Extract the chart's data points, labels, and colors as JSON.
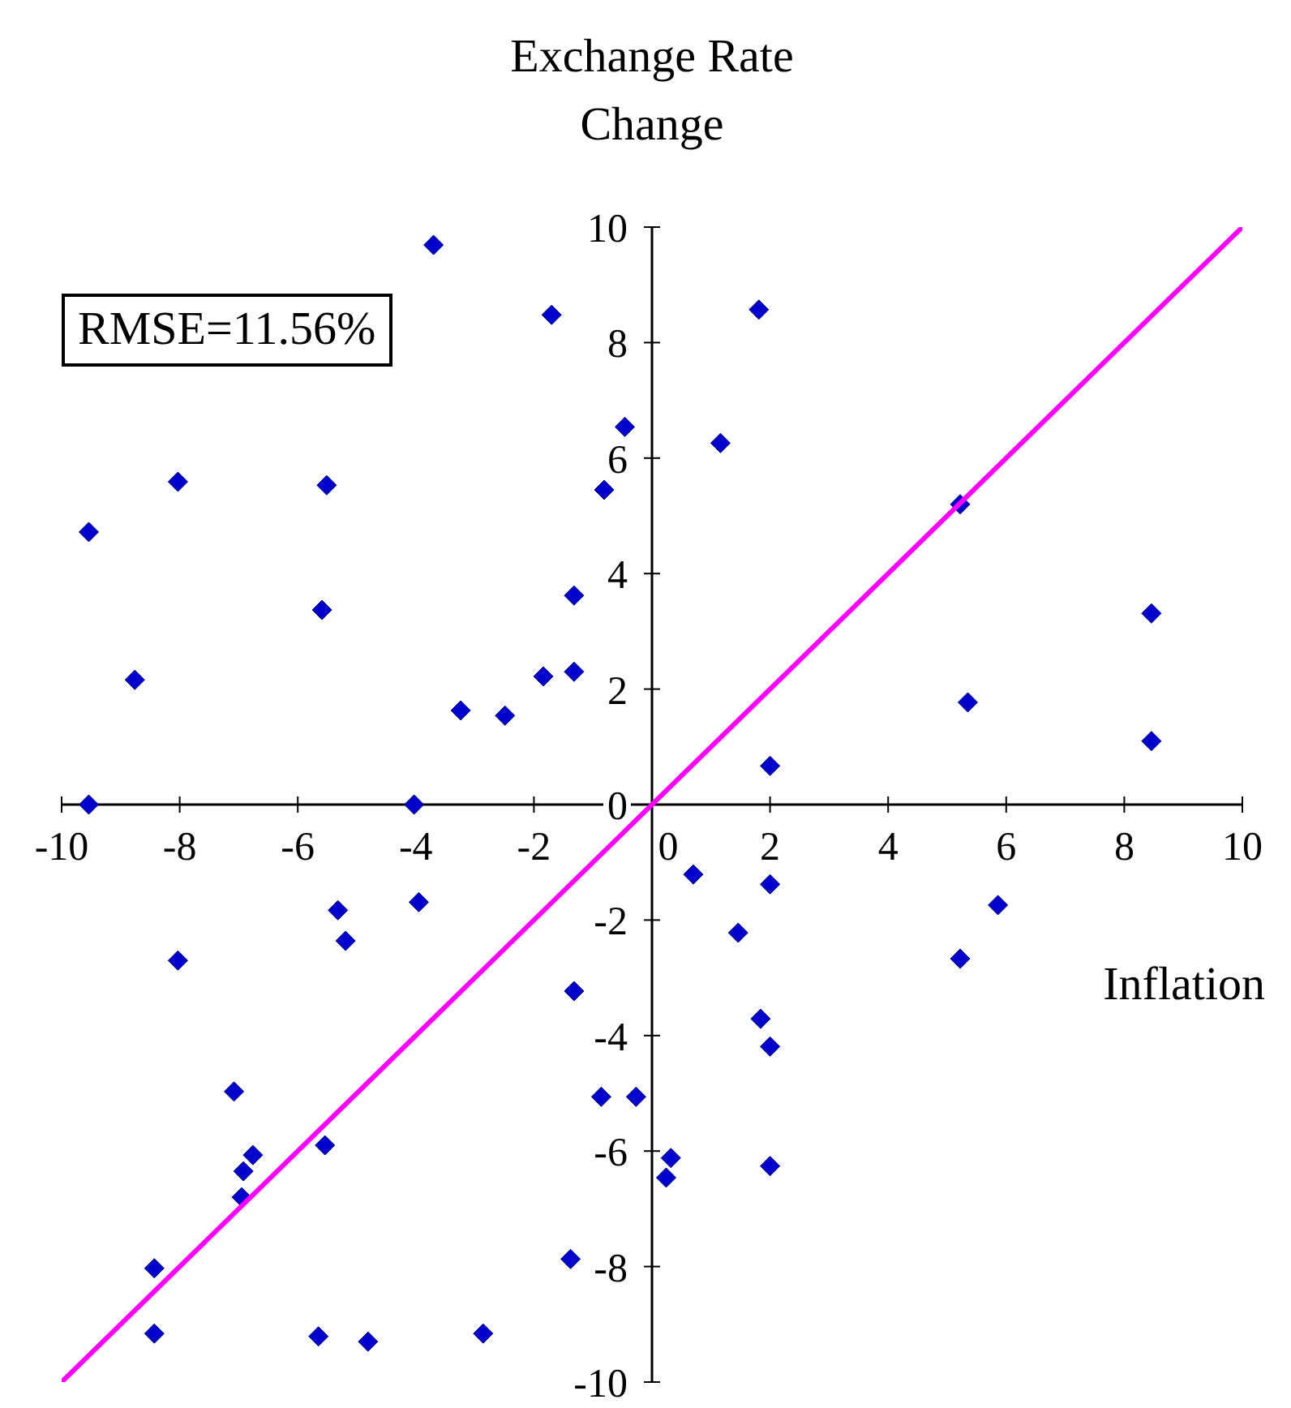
{
  "chart_data": {
    "type": "scatter",
    "ylabel": "Exchange Rate Change",
    "xlabel": "Inflation",
    "annotations": [
      "RMSE=11.56%"
    ],
    "xlim": [
      -10,
      10
    ],
    "xticks": [
      -10,
      -8,
      -6,
      -4,
      -2,
      0,
      2,
      4,
      6,
      8,
      10
    ],
    "ylim": [
      -10,
      10
    ],
    "yticks": [
      -10,
      -8,
      -6,
      -4,
      -2,
      0,
      2,
      4,
      6,
      8,
      10
    ],
    "grid": false,
    "legend": false,
    "marker": "diamond",
    "series": [
      {
        "color": "#0000cc",
        "x": [
          -3.7,
          -1.7,
          1.81,
          -9.54,
          -8.03,
          -5.51,
          -0.46,
          1.16,
          -0.81,
          5.22,
          -5.59,
          -1.32,
          -8.76,
          -1.32,
          -1.84,
          -3.24,
          -2.49,
          5.35,
          8.46,
          8.46,
          2.0,
          -9.54,
          -4.03,
          0.7,
          2.0,
          -5.32,
          -5.19,
          -3.95,
          -8.03,
          1.46,
          5.22,
          5.86,
          -1.32,
          1.84,
          2.0,
          -7.08,
          -0.86,
          -0.27,
          -5.54,
          -6.76,
          -6.92,
          -6.95,
          0.32,
          0.24,
          2.0,
          -8.43,
          -1.38,
          -8.43,
          -5.65,
          -4.81,
          -2.86
        ],
        "values": [
          9.69,
          8.48,
          8.57,
          4.72,
          5.59,
          5.53,
          6.54,
          6.26,
          5.45,
          5.2,
          3.37,
          3.62,
          2.16,
          2.3,
          2.22,
          1.63,
          1.54,
          1.77,
          3.31,
          1.1,
          0.67,
          0,
          0,
          -1.21,
          -1.38,
          -1.83,
          -2.36,
          -1.69,
          -2.7,
          -2.22,
          -2.67,
          -1.74,
          -3.23,
          -3.71,
          -4.19,
          -4.97,
          -5.06,
          -5.06,
          -5.9,
          -6.07,
          -6.35,
          -6.8,
          -6.12,
          -6.46,
          -6.26,
          -8.03,
          -7.87,
          -9.16,
          -9.21,
          -9.3,
          -9.16
        ]
      },
      {
        "type": "line",
        "color": "#ff00ff",
        "x": [
          -10,
          10
        ],
        "values": [
          -10,
          10
        ],
        "line_style": "solid",
        "marker": "none"
      }
    ]
  }
}
